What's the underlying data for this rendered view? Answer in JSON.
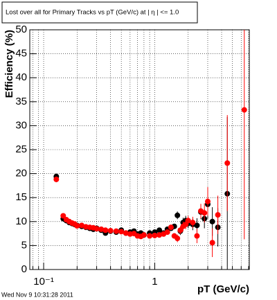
{
  "chart_data": {
    "type": "scatter",
    "title": "Lost over all for Primary Tracks vs pT (GeV/c) at | η | <= 1.0",
    "x_label": "pT (GeV/c)",
    "y_label": "Efficiency (%)",
    "footer": "Wed Nov  9 10:31:28 2011",
    "log_x": true,
    "grid": true,
    "xlim": [
      0.075,
      7.1
    ],
    "ylim": [
      0,
      50
    ],
    "xticks": [
      {
        "value": 0.1,
        "label": "10⁻¹"
      },
      1
    ],
    "xminor_ticks": [
      0.08,
      0.09,
      0.2,
      0.3,
      0.4,
      0.5,
      0.6,
      0.7,
      0.8,
      0.9,
      2,
      3,
      4,
      5,
      6,
      7
    ],
    "yticks": [
      0,
      5,
      10,
      15,
      20,
      25,
      30,
      35,
      40,
      45,
      50
    ],
    "x": [
      0.13,
      0.15,
      0.16,
      0.17,
      0.18,
      0.19,
      0.2,
      0.22,
      0.24,
      0.26,
      0.28,
      0.3,
      0.33,
      0.36,
      0.4,
      0.45,
      0.5,
      0.55,
      0.6,
      0.65,
      0.7,
      0.75,
      0.8,
      0.9,
      1.0,
      1.1,
      1.2,
      1.3,
      1.4,
      1.5,
      1.6,
      1.7,
      1.8,
      1.9,
      2.0,
      2.2,
      2.4,
      2.6,
      2.8,
      3.0,
      3.3,
      3.7,
      4.5,
      6.4
    ],
    "series": [
      {
        "color": "#000000",
        "values": [
          19.4,
          10.6,
          10.2,
          9.8,
          9.6,
          9.4,
          9.2,
          9.0,
          8.8,
          8.6,
          8.4,
          8.6,
          8.2,
          7.6,
          8.0,
          7.8,
          8.2,
          7.6,
          7.8,
          8.0,
          7.4,
          7.6,
          7.2,
          7.6,
          7.8,
          8.2,
          7.6,
          8.4,
          8.6,
          9.0,
          11.3,
          8.0,
          9.8,
          10.2,
          9.6,
          9.4,
          9.2,
          12.0,
          10.6,
          13.6,
          10.0,
          8.8,
          15.8,
          null
        ],
        "errors": [
          0.6,
          0.4,
          0.3,
          0.3,
          0.3,
          0.3,
          0.3,
          0.3,
          0.3,
          0.3,
          0.3,
          0.3,
          0.3,
          0.3,
          0.3,
          0.3,
          0.3,
          0.3,
          0.3,
          0.3,
          0.3,
          0.3,
          0.3,
          0.3,
          0.3,
          0.3,
          0.3,
          0.3,
          0.3,
          0.3,
          0.8,
          0.8,
          1.0,
          1.0,
          1.0,
          1.2,
          1.5,
          1.5,
          2.0,
          3.0,
          3.0,
          4.0,
          16.0,
          null
        ]
      },
      {
        "color": "#ff0000",
        "values": [
          18.8,
          11.2,
          10.4,
          10.0,
          9.7,
          9.5,
          9.1,
          9.2,
          8.9,
          8.8,
          8.7,
          8.5,
          8.4,
          8.2,
          8.1,
          8.0,
          7.9,
          7.6,
          7.4,
          7.5,
          7.0,
          6.9,
          7.2,
          7.0,
          7.1,
          7.2,
          7.4,
          7.8,
          8.8,
          7.0,
          6.5,
          8.2,
          9.0,
          9.4,
          10.2,
          9.8,
          7.0,
          12.2,
          11.8,
          14.2,
          5.6,
          11.4,
          22.2,
          33.3
        ],
        "errors": [
          0.6,
          0.4,
          0.3,
          0.3,
          0.3,
          0.3,
          0.3,
          0.3,
          0.3,
          0.3,
          0.3,
          0.3,
          0.3,
          0.3,
          0.3,
          0.3,
          0.3,
          0.3,
          0.3,
          0.3,
          0.3,
          0.3,
          0.3,
          0.3,
          0.3,
          0.3,
          0.3,
          0.3,
          0.3,
          0.3,
          0.8,
          0.8,
          1.0,
          1.0,
          1.0,
          1.2,
          1.5,
          1.5,
          2.0,
          3.0,
          3.0,
          4.0,
          10.0,
          27.0
        ]
      }
    ]
  }
}
